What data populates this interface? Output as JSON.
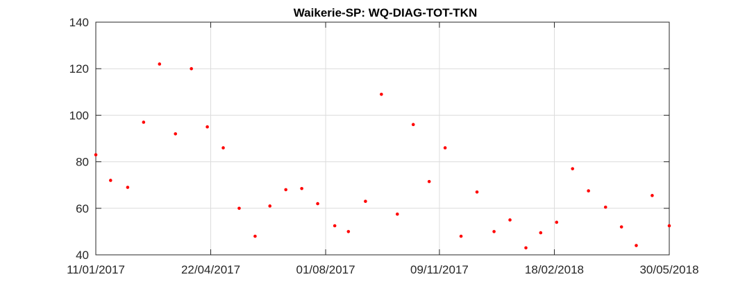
{
  "chart_data": {
    "type": "scatter",
    "title": "Waikerie-SP: WQ-DIAG-TOT-TKN",
    "xlabel": "",
    "ylabel": "",
    "x_axis_type": "date",
    "xlim": [
      "2017-01-11",
      "2018-05-30"
    ],
    "ylim": [
      40,
      140
    ],
    "x_ticks": [
      "2017-01-11",
      "2017-04-22",
      "2017-08-01",
      "2017-11-09",
      "2018-02-18",
      "2018-05-30"
    ],
    "x_tick_labels": [
      "11/01/2017",
      "22/04/2017",
      "01/08/2017",
      "09/11/2017",
      "18/02/2018",
      "30/05/2018"
    ],
    "y_ticks": [
      40,
      60,
      80,
      100,
      120,
      140
    ],
    "grid": true,
    "legend": "none",
    "marker_color": "#ff0000",
    "points": [
      {
        "x": "2017-01-11",
        "y": 83
      },
      {
        "x": "2017-01-24",
        "y": 72
      },
      {
        "x": "2017-02-08",
        "y": 69
      },
      {
        "x": "2017-02-22",
        "y": 97
      },
      {
        "x": "2017-03-08",
        "y": 122
      },
      {
        "x": "2017-03-22",
        "y": 92
      },
      {
        "x": "2017-04-05",
        "y": 120
      },
      {
        "x": "2017-04-19",
        "y": 95
      },
      {
        "x": "2017-05-03",
        "y": 86
      },
      {
        "x": "2017-05-17",
        "y": 60
      },
      {
        "x": "2017-05-31",
        "y": 48
      },
      {
        "x": "2017-06-13",
        "y": 61
      },
      {
        "x": "2017-06-27",
        "y": 68
      },
      {
        "x": "2017-07-11",
        "y": 68.5
      },
      {
        "x": "2017-07-25",
        "y": 62
      },
      {
        "x": "2017-08-09",
        "y": 52.5
      },
      {
        "x": "2017-08-21",
        "y": 50
      },
      {
        "x": "2017-09-05",
        "y": 63
      },
      {
        "x": "2017-09-19",
        "y": 109
      },
      {
        "x": "2017-10-03",
        "y": 57.5
      },
      {
        "x": "2017-10-17",
        "y": 96
      },
      {
        "x": "2017-10-31",
        "y": 71.5
      },
      {
        "x": "2017-11-14",
        "y": 86
      },
      {
        "x": "2017-11-28",
        "y": 48
      },
      {
        "x": "2017-12-12",
        "y": 67
      },
      {
        "x": "2017-12-27",
        "y": 50
      },
      {
        "x": "2018-01-10",
        "y": 55
      },
      {
        "x": "2018-01-24",
        "y": 43
      },
      {
        "x": "2018-02-06",
        "y": 49.5
      },
      {
        "x": "2018-02-20",
        "y": 54
      },
      {
        "x": "2018-03-06",
        "y": 77
      },
      {
        "x": "2018-03-20",
        "y": 67.5
      },
      {
        "x": "2018-04-04",
        "y": 60.5
      },
      {
        "x": "2018-04-18",
        "y": 52
      },
      {
        "x": "2018-05-01",
        "y": 44
      },
      {
        "x": "2018-05-15",
        "y": 65.5
      },
      {
        "x": "2018-05-30",
        "y": 52.5
      }
    ]
  }
}
